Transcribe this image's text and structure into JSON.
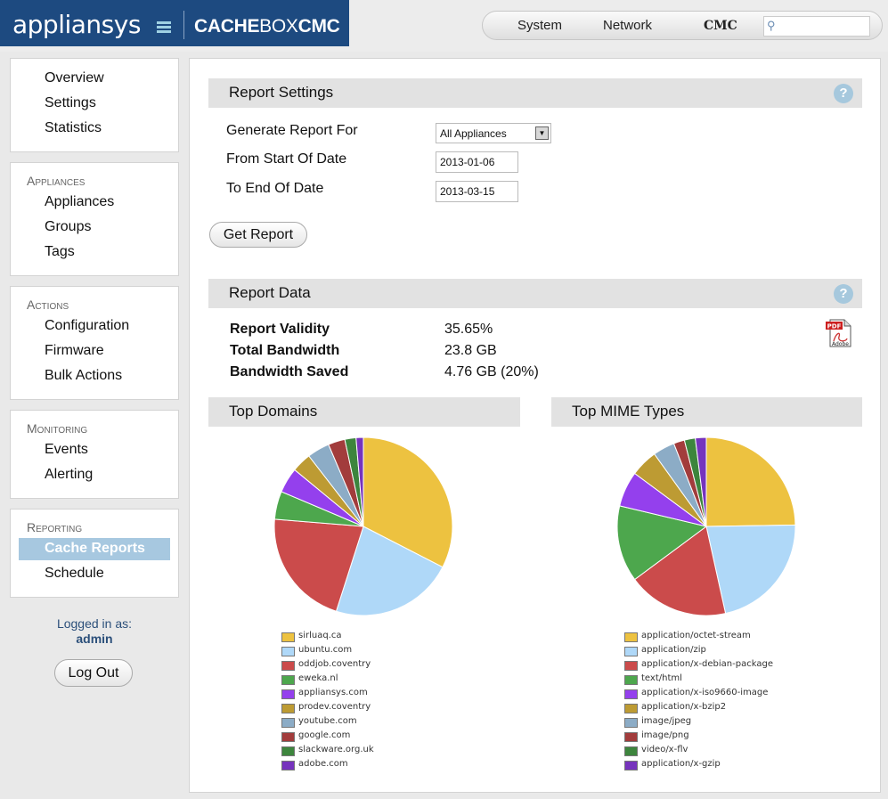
{
  "header": {
    "logo": "appliansys",
    "product_bold": "CACHE",
    "product_mid": "BOX",
    "product_suffix": "CMC",
    "nav": [
      "System",
      "Network",
      "CMC"
    ],
    "search_placeholder": ""
  },
  "sidebar": {
    "main_items": [
      "Overview",
      "Settings",
      "Statistics"
    ],
    "appliances": {
      "title": "Appliances",
      "items": [
        "Appliances",
        "Groups",
        "Tags"
      ]
    },
    "actions": {
      "title": "Actions",
      "items": [
        "Configuration",
        "Firmware",
        "Bulk Actions"
      ]
    },
    "monitoring": {
      "title": "Monitoring",
      "items": [
        "Events",
        "Alerting"
      ]
    },
    "reporting": {
      "title": "Reporting",
      "items": [
        "Cache Reports",
        "Schedule"
      ],
      "active": "Cache Reports"
    },
    "logged_in_label": "Logged in as:",
    "user": "admin",
    "logout": "Log Out"
  },
  "report_settings": {
    "title": "Report Settings",
    "generate_label": "Generate Report For",
    "generate_value": "All Appliances",
    "start_label": "From Start Of Date",
    "start_value": "2013-01-06",
    "end_label": "To End Of Date",
    "end_value": "2013-03-15",
    "button": "Get Report",
    "help": "?"
  },
  "report_data": {
    "title": "Report Data",
    "help": "?",
    "rows": [
      {
        "label": "Report Validity",
        "value": "35.65%"
      },
      {
        "label": "Total Bandwidth",
        "value": "23.8 GB"
      },
      {
        "label": "Bandwidth Saved",
        "value": "4.76 GB (20%)"
      }
    ],
    "pdf_icon_text": "PDF",
    "pdf_icon_sub": "Adobe"
  },
  "chart_data": [
    {
      "type": "pie",
      "title": "Top Domains",
      "labels": [
        "sirluaq.ca",
        "ubuntu.com",
        "oddjob.coventry",
        "eweka.nl",
        "appliansys.com",
        "prodev.coventry",
        "youtube.com",
        "google.com",
        "slackware.org.uk",
        "adobe.com"
      ],
      "values": [
        32,
        22,
        21,
        5,
        4.5,
        3.5,
        4,
        3,
        2,
        1.3
      ],
      "colors": [
        "#edc240",
        "#afd8f8",
        "#cb4b4b",
        "#4da74d",
        "#9440ed",
        "#bd9b33",
        "#8cacc6",
        "#a23c3c",
        "#3d853d",
        "#7633bd"
      ]
    },
    {
      "type": "pie",
      "title": "Top MIME Types",
      "labels": [
        "application/octet-stream",
        "application/zip",
        "application/x-debian-package",
        "text/html",
        "application/x-iso9660-image",
        "application/x-bzip2",
        "image/jpeg",
        "image/png",
        "video/x-flv",
        "application/x-gzip"
      ],
      "values": [
        25,
        22,
        18.5,
        14,
        6.5,
        5,
        4,
        2,
        2,
        2
      ],
      "colors": [
        "#edc240",
        "#afd8f8",
        "#cb4b4b",
        "#4da74d",
        "#9440ed",
        "#bd9b33",
        "#8cacc6",
        "#a23c3c",
        "#3d853d",
        "#7633bd"
      ]
    }
  ]
}
